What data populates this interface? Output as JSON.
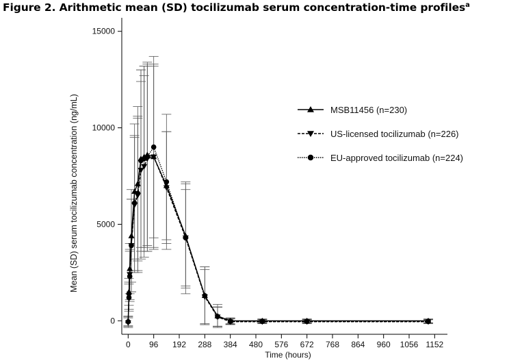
{
  "figure": {
    "title": "Figure 2. Arithmetic mean (SD) tocilizumab serum concentration-time profiles",
    "title_superscript": "a"
  },
  "chart_data": {
    "type": "line",
    "xlabel": "Time (hours)",
    "ylabel": "Mean (SD) serum tocilizumab concentration (ng/mL)",
    "xlim": [
      -24,
      1200
    ],
    "ylim": [
      -700,
      15700
    ],
    "xticks": [
      0,
      96,
      192,
      288,
      384,
      480,
      576,
      672,
      768,
      864,
      960,
      1056,
      1152
    ],
    "yticks": [
      0,
      5000,
      10000,
      15000
    ],
    "grid": false,
    "legend_position": "top-right",
    "error_bars": "SD",
    "series": [
      {
        "name": "MSB11456 (n=230)",
        "marker": "triangle-up",
        "line_style": "solid",
        "x": [
          0,
          3,
          6,
          12,
          24,
          36,
          48,
          60,
          72,
          96,
          144,
          216,
          288,
          336,
          384,
          504,
          672,
          1128
        ],
        "y": [
          0,
          1500,
          2700,
          4400,
          6700,
          7100,
          8400,
          8500,
          8600,
          8500,
          7000,
          4400,
          1300,
          250,
          0,
          0,
          0,
          0
        ],
        "sd": [
          250,
          700,
          1300,
          2400,
          3500,
          4000,
          4600,
          4700,
          4700,
          4700,
          2800,
          2700,
          1500,
          600,
          150,
          100,
          100,
          100
        ]
      },
      {
        "name": "US-licensed tocilizumab (n=226)",
        "marker": "triangle-down",
        "line_style": "dashed",
        "x": [
          0,
          3,
          6,
          12,
          24,
          36,
          48,
          60,
          72,
          96,
          144,
          216,
          288,
          336,
          384,
          504,
          672,
          1128
        ],
        "y": [
          -100,
          1300,
          2400,
          3900,
          6000,
          6500,
          7800,
          8000,
          8400,
          8500,
          6900,
          4300,
          1250,
          200,
          -50,
          -50,
          -50,
          -50
        ],
        "sd": [
          250,
          700,
          1300,
          2400,
          3500,
          4000,
          4600,
          4700,
          4800,
          4800,
          2900,
          2500,
          1400,
          500,
          150,
          100,
          100,
          100
        ]
      },
      {
        "name": "EU-approved tocilizumab (n=224)",
        "marker": "circle",
        "line_style": "dotted",
        "x": [
          0,
          3,
          6,
          12,
          24,
          36,
          48,
          60,
          72,
          96,
          144,
          216,
          288,
          336,
          384,
          504,
          672,
          1128
        ],
        "y": [
          -50,
          1200,
          2300,
          3900,
          6100,
          6600,
          8300,
          8400,
          8500,
          9000,
          7200,
          4300,
          1300,
          220,
          -30,
          -30,
          -30,
          -30
        ],
        "sd": [
          250,
          700,
          1300,
          2400,
          3500,
          4000,
          4700,
          4800,
          4900,
          4700,
          3500,
          2900,
          1500,
          500,
          150,
          100,
          100,
          100
        ]
      }
    ]
  },
  "colors": {
    "line": "#000000",
    "error_bar": "#555555",
    "axis": "#000000"
  }
}
